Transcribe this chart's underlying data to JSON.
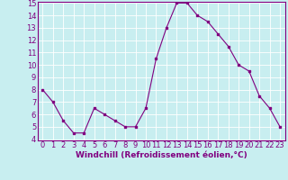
{
  "x": [
    0,
    1,
    2,
    3,
    4,
    5,
    6,
    7,
    8,
    9,
    10,
    11,
    12,
    13,
    14,
    15,
    16,
    17,
    18,
    19,
    20,
    21,
    22,
    23
  ],
  "y": [
    8,
    7,
    5.5,
    4.5,
    4.5,
    6.5,
    6,
    5.5,
    5,
    5,
    6.5,
    10.5,
    13,
    15,
    15,
    14,
    13.5,
    12.5,
    11.5,
    10,
    9.5,
    7.5,
    6.5,
    5
  ],
  "line_color": "#800080",
  "marker": "s",
  "markersize": 2,
  "linewidth": 0.8,
  "bg_color": "#c8eef0",
  "grid_color": "#ffffff",
  "xlabel": "Windchill (Refroidissement éolien,°C)",
  "xlabel_color": "#800080",
  "xlabel_fontsize": 6.5,
  "tick_color": "#800080",
  "tick_fontsize": 6,
  "ylim_min": 4,
  "ylim_max": 15,
  "yticks": [
    4,
    5,
    6,
    7,
    8,
    9,
    10,
    11,
    12,
    13,
    14,
    15
  ],
  "xticks": [
    0,
    1,
    2,
    3,
    4,
    5,
    6,
    7,
    8,
    9,
    10,
    11,
    12,
    13,
    14,
    15,
    16,
    17,
    18,
    19,
    20,
    21,
    22,
    23
  ]
}
